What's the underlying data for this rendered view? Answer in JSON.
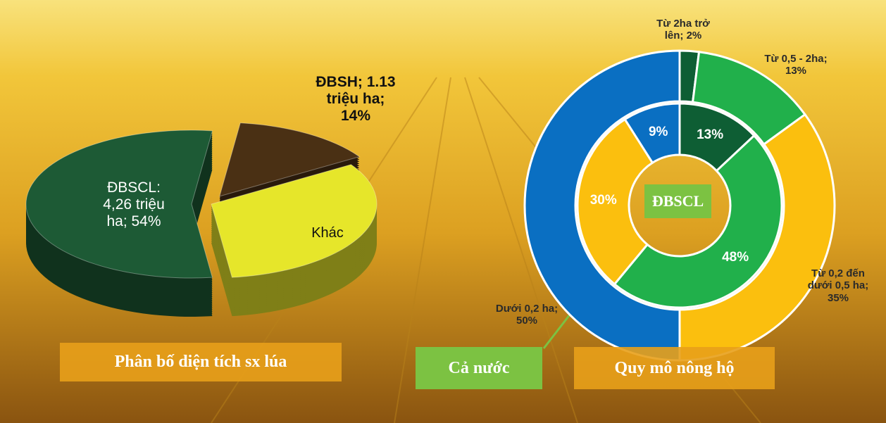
{
  "chart_data": [
    {
      "type": "pie3d",
      "title": "Phân bố diện tích sx lúa",
      "categories": [
        "ĐBSCL: 4,26 triệu ha; 54%",
        "ĐBSH; 1.13 triệu ha; 14%",
        "Khác"
      ],
      "values": [
        54,
        14,
        32
      ],
      "colors": [
        "#1d5a35",
        "#4a3014",
        "#e6e62a"
      ]
    },
    {
      "type": "donut",
      "title": "Quy mô nông hộ",
      "series": [
        {
          "name": "Cả nước",
          "values": [
            2,
            13,
            35,
            50
          ],
          "value_labels": [
            "Từ 2ha trở lên; 2%",
            "Từ 0,5 - 2ha; 13%",
            "Từ 0,2 đến dưới 0,5 ha; 35%",
            "Dưới 0,2 ha; 50%"
          ],
          "colors": [
            "#0e5e34",
            "#21b04b",
            "#fbbf0e",
            "#0a6fc2"
          ]
        },
        {
          "name": "ĐBSCL",
          "values": [
            13,
            48,
            30,
            9
          ],
          "value_labels": [
            "13%",
            "48%",
            "30%",
            "9%"
          ],
          "colors": [
            "#0e5e34",
            "#21b04b",
            "#fbbf0e",
            "#0a6fc2"
          ]
        }
      ]
    }
  ]
}
